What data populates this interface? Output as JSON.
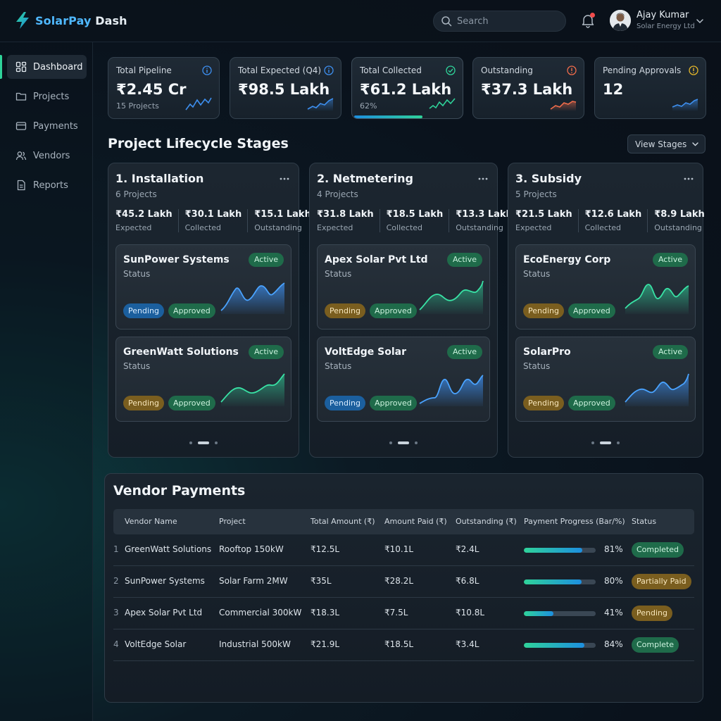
{
  "app": {
    "logo_prefix": "SolarPay",
    "logo_suffix": " Dash"
  },
  "header": {
    "search_placeholder": "Search",
    "user_name": "Ajay Kumar",
    "user_org": "Solar Energy Ltd"
  },
  "sidebar": {
    "items": [
      {
        "label": "Dashboard",
        "icon": "grid-icon",
        "active": true
      },
      {
        "label": "Projects",
        "icon": "folder-icon"
      },
      {
        "label": "Payments",
        "icon": "card-icon"
      },
      {
        "label": "Vendors",
        "icon": "users-icon"
      },
      {
        "label": "Reports",
        "icon": "document-icon"
      }
    ]
  },
  "kpis": [
    {
      "label": "Total Pipeline",
      "value": "₹2.45 Cr",
      "sub": "15 Projects",
      "icon": "info-icon",
      "color": "#3d8ff0"
    },
    {
      "label": "Total Expected (Q4)",
      "value": "₹98.5 Lakh",
      "sub": "",
      "icon": "info-icon",
      "color": "#3d8ff0"
    },
    {
      "label": "Total Collected",
      "value": "₹61.2 Lakh",
      "sub": "62%",
      "progress": 0.62,
      "icon": "check-circle-icon",
      "color": "#2fd39a"
    },
    {
      "label": "Outstanding",
      "value": "₹37.3 Lakh",
      "sub": "",
      "icon": "alert-icon",
      "color": "#f06c4b"
    },
    {
      "label": "Pending Approvals",
      "value": "12",
      "sub": "",
      "icon": "alert-icon",
      "color": "#e3b62a"
    }
  ],
  "lifecycle": {
    "title": "Project Lifecycle Stages",
    "view_button": "View Stages",
    "stages": [
      {
        "title": "1. Installation",
        "count": "6 Projects",
        "stats": [
          {
            "value": "₹45.2 Lakh",
            "label": "Expected"
          },
          {
            "value": "₹30.1 Lakh",
            "label": "Collected"
          },
          {
            "value": "₹15.1 Lakh",
            "label": "Outstanding"
          }
        ],
        "cards": [
          {
            "name": "SunPower Systems",
            "status": "Status",
            "badge": "Active",
            "pending": "Pending",
            "approved": "Approved",
            "pending_color": "blue",
            "chart_color": "blue"
          },
          {
            "name": "GreenWatt Solutions",
            "status": "Status",
            "badge": "Active",
            "pending": "Pending",
            "approved": "Approved",
            "pending_color": "gold",
            "chart_color": "green"
          }
        ]
      },
      {
        "title": "2. Netmetering",
        "count": "4 Projects",
        "stats": [
          {
            "value": "₹31.8 Lakh",
            "label": "Expected"
          },
          {
            "value": "₹18.5 Lakh",
            "label": "Collected"
          },
          {
            "value": "₹13.3 Lakh",
            "label": "Outstanding"
          }
        ],
        "cards": [
          {
            "name": "Apex Solar Pvt Ltd",
            "status": "Status",
            "badge": "Active",
            "pending": "Pending",
            "approved": "Approved",
            "pending_color": "gold",
            "chart_color": "green"
          },
          {
            "name": "VoltEdge Solar",
            "status": "Status",
            "badge": "Active",
            "pending": "Pending",
            "approved": "Approved",
            "pending_color": "blue",
            "chart_color": "blue"
          }
        ]
      },
      {
        "title": "3. Subsidy",
        "count": "5 Projects",
        "stats": [
          {
            "value": "₹21.5 Lakh",
            "label": "Expected"
          },
          {
            "value": "₹12.6 Lakh",
            "label": "Collected"
          },
          {
            "value": "₹8.9 Lakh",
            "label": "Outstanding"
          }
        ],
        "cards": [
          {
            "name": "EcoEnergy Corp",
            "status": "Status",
            "badge": "Active",
            "pending": "Pending",
            "approved": "Approved",
            "pending_color": "gold",
            "chart_color": "green"
          },
          {
            "name": "SolarPro",
            "status": "Status",
            "badge": "Active",
            "pending": "Pending",
            "approved": "Approved",
            "pending_color": "gold",
            "chart_color": "blue"
          }
        ]
      }
    ]
  },
  "vendors": {
    "title": "Vendor Payments",
    "columns": [
      "Vendor Name",
      "Project",
      "Total Amount (₹)",
      "Amount Paid (₹)",
      "Outstanding (₹)",
      "Payment Progress (Bar/%)",
      "Status"
    ],
    "rows": [
      {
        "idx": "1",
        "vendor": "GreenWatt Solutions",
        "project": "Rooftop 150kW",
        "total": "₹12.5L",
        "paid": "₹10.1L",
        "outstanding": "₹2.4L",
        "progress": 81,
        "progress_label": "81%",
        "status": "Completed",
        "status_color": "green"
      },
      {
        "idx": "2",
        "vendor": "SunPower Systems",
        "project": "Solar Farm 2MW",
        "total": "₹35L",
        "paid": "₹28.2L",
        "outstanding": "₹6.8L",
        "progress": 80,
        "progress_label": "80%",
        "status": "Partially Paid",
        "status_color": "gold"
      },
      {
        "idx": "3",
        "vendor": "Apex Solar Pvt Ltd",
        "project": "Commercial 300kW",
        "total": "₹18.3L",
        "paid": "₹7.5L",
        "outstanding": "₹10.8L",
        "progress": 41,
        "progress_label": "41%",
        "status": "Pending",
        "status_color": "gold"
      },
      {
        "idx": "4",
        "vendor": "VoltEdge Solar",
        "project": "Industrial 500kW",
        "total": "₹21.9L",
        "paid": "₹18.5L",
        "outstanding": "₹3.4L",
        "progress": 84,
        "progress_label": "84%",
        "status": "Complete",
        "status_color": "green"
      }
    ]
  }
}
